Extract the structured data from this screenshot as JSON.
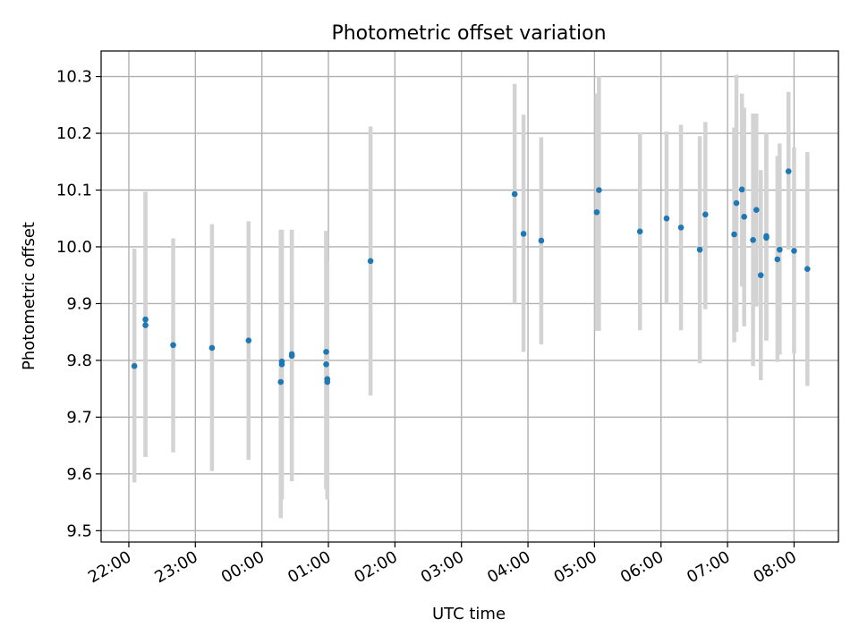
{
  "chart_data": {
    "type": "scatter",
    "title": "Photometric offset variation",
    "xlabel": "UTC time",
    "ylabel": "Photometric offset",
    "grid": true,
    "legend": "none",
    "xlim": [
      "21:35",
      "08:40"
    ],
    "ylim": [
      9.48,
      10.345
    ],
    "x_ticks": [
      "22:00",
      "23:00",
      "00:00",
      "01:00",
      "02:00",
      "03:00",
      "04:00",
      "05:00",
      "06:00",
      "07:00",
      "08:00"
    ],
    "y_ticks": [
      "9.5",
      "9.6",
      "9.7",
      "9.8",
      "9.9",
      "10.0",
      "10.1",
      "10.2",
      "10.3"
    ],
    "colors": {
      "points": "#1f77b4",
      "errorbars": "#d3d3d3",
      "grid": "#b0b0b0"
    },
    "series": [
      {
        "points": [
          {
            "x": "22:05",
            "y": 9.79,
            "yerr_low": 9.585,
            "yerr_high": 9.997
          },
          {
            "x": "22:15",
            "y": 9.862,
            "yerr_low": 9.63,
            "yerr_high": 10.097
          },
          {
            "x": "22:15",
            "y": 9.872,
            "yerr_low": 9.63,
            "yerr_high": 10.097
          },
          {
            "x": "22:40",
            "y": 9.827,
            "yerr_low": 9.638,
            "yerr_high": 10.015
          },
          {
            "x": "23:15",
            "y": 9.822,
            "yerr_low": 9.605,
            "yerr_high": 10.04
          },
          {
            "x": "23:48",
            "y": 9.835,
            "yerr_low": 9.625,
            "yerr_high": 10.045
          },
          {
            "x": "00:17",
            "y": 9.762,
            "yerr_low": 9.522,
            "yerr_high": 10.03
          },
          {
            "x": "00:18",
            "y": 9.793,
            "yerr_low": 9.555,
            "yerr_high": 10.03
          },
          {
            "x": "00:18",
            "y": 9.798,
            "yerr_low": 9.555,
            "yerr_high": 10.03
          },
          {
            "x": "00:27",
            "y": 9.808,
            "yerr_low": 9.587,
            "yerr_high": 10.03
          },
          {
            "x": "00:27",
            "y": 9.811,
            "yerr_low": 9.6,
            "yerr_high": 10.03
          },
          {
            "x": "00:58",
            "y": 9.815,
            "yerr_low": 9.573,
            "yerr_high": 10.028
          },
          {
            "x": "00:58",
            "y": 9.793,
            "yerr_low": 9.573,
            "yerr_high": 10.028
          },
          {
            "x": "00:59",
            "y": 9.762,
            "yerr_low": 9.555,
            "yerr_high": 9.975
          },
          {
            "x": "00:59",
            "y": 9.767,
            "yerr_low": 9.555,
            "yerr_high": 9.975
          },
          {
            "x": "01:38",
            "y": 9.975,
            "yerr_low": 9.738,
            "yerr_high": 10.212
          },
          {
            "x": "03:48",
            "y": 10.093,
            "yerr_low": 9.9,
            "yerr_high": 10.287
          },
          {
            "x": "03:56",
            "y": 10.023,
            "yerr_low": 9.815,
            "yerr_high": 10.233
          },
          {
            "x": "04:12",
            "y": 10.011,
            "yerr_low": 9.828,
            "yerr_high": 10.193
          },
          {
            "x": "05:02",
            "y": 10.061,
            "yerr_low": 9.852,
            "yerr_high": 10.27
          },
          {
            "x": "05:04",
            "y": 10.1,
            "yerr_low": 9.852,
            "yerr_high": 10.3
          },
          {
            "x": "05:41",
            "y": 10.027,
            "yerr_low": 9.853,
            "yerr_high": 10.2
          },
          {
            "x": "06:05",
            "y": 10.05,
            "yerr_low": 9.9,
            "yerr_high": 10.203
          },
          {
            "x": "06:18",
            "y": 10.034,
            "yerr_low": 9.853,
            "yerr_high": 10.215
          },
          {
            "x": "06:35",
            "y": 9.995,
            "yerr_low": 9.795,
            "yerr_high": 10.195
          },
          {
            "x": "06:40",
            "y": 10.057,
            "yerr_low": 9.89,
            "yerr_high": 10.22
          },
          {
            "x": "07:06",
            "y": 10.022,
            "yerr_low": 9.832,
            "yerr_high": 10.21
          },
          {
            "x": "07:08",
            "y": 10.077,
            "yerr_low": 9.85,
            "yerr_high": 10.303
          },
          {
            "x": "07:13",
            "y": 10.101,
            "yerr_low": 9.93,
            "yerr_high": 10.27
          },
          {
            "x": "07:15",
            "y": 10.053,
            "yerr_low": 9.86,
            "yerr_high": 10.245
          },
          {
            "x": "07:23",
            "y": 10.012,
            "yerr_low": 9.79,
            "yerr_high": 10.235
          },
          {
            "x": "07:26",
            "y": 10.065,
            "yerr_low": 9.895,
            "yerr_high": 10.235
          },
          {
            "x": "07:30",
            "y": 9.95,
            "yerr_low": 9.765,
            "yerr_high": 10.135
          },
          {
            "x": "07:35",
            "y": 10.016,
            "yerr_low": 9.835,
            "yerr_high": 10.2
          },
          {
            "x": "07:35",
            "y": 10.019,
            "yerr_low": 9.835,
            "yerr_high": 10.2
          },
          {
            "x": "07:45",
            "y": 9.978,
            "yerr_low": 9.797,
            "yerr_high": 10.16
          },
          {
            "x": "07:47",
            "y": 9.995,
            "yerr_low": 9.81,
            "yerr_high": 10.182
          },
          {
            "x": "07:55",
            "y": 10.133,
            "yerr_low": 9.995,
            "yerr_high": 10.273
          },
          {
            "x": "08:00",
            "y": 9.993,
            "yerr_low": 9.812,
            "yerr_high": 10.175
          },
          {
            "x": "08:12",
            "y": 9.961,
            "yerr_low": 9.755,
            "yerr_high": 10.167
          }
        ]
      }
    ]
  }
}
